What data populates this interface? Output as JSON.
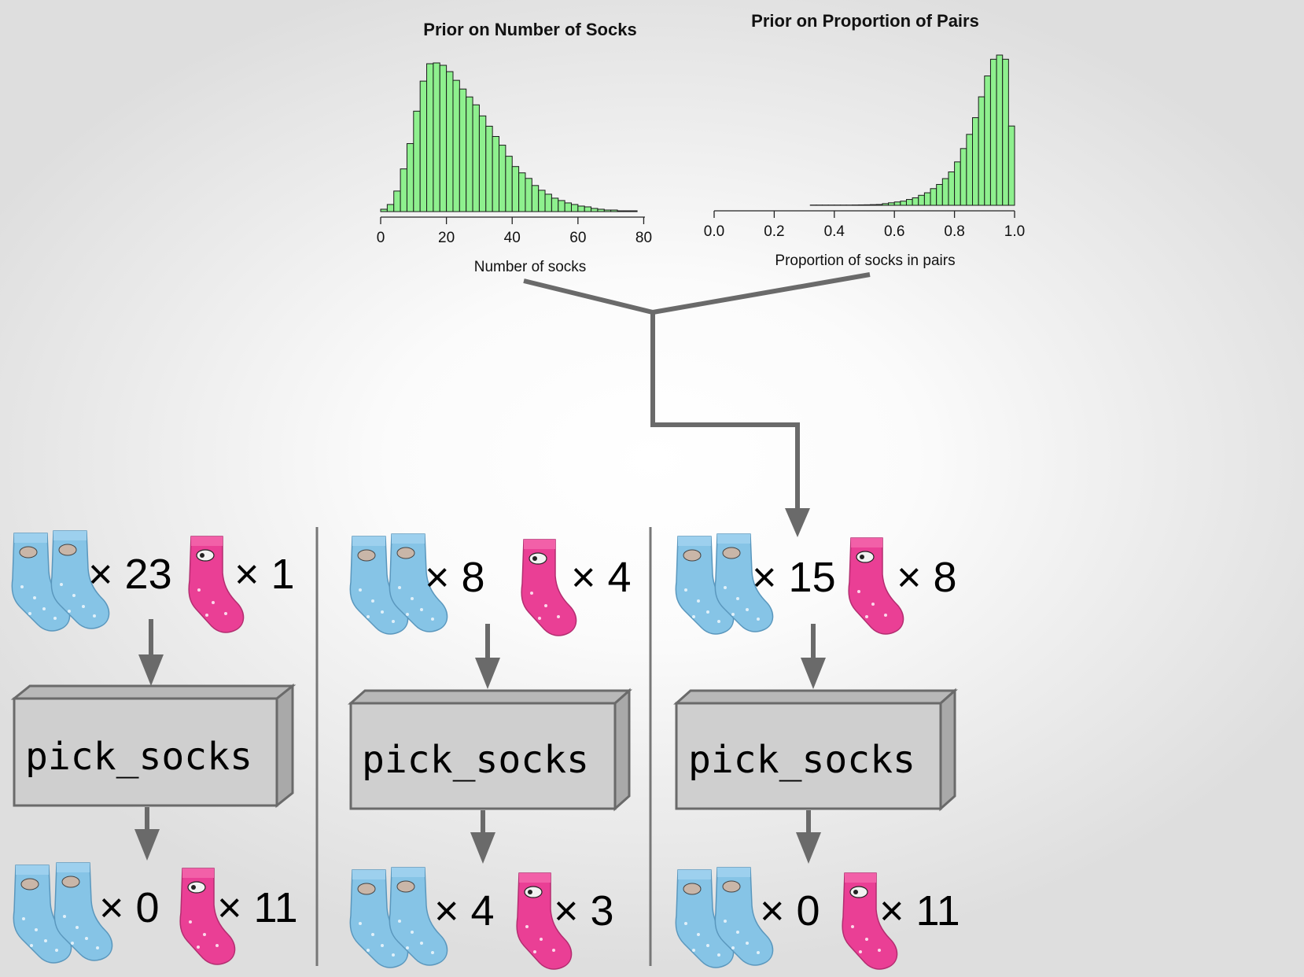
{
  "chart_data": [
    {
      "type": "bar",
      "title": "Prior on Number of Socks",
      "xlabel": "Number of socks",
      "ylabel": "",
      "xlim": [
        0,
        94
      ],
      "xticks": [
        0,
        20,
        40,
        60,
        80
      ],
      "bin_width": 2,
      "bin_start": 0,
      "values": [
        3,
        9,
        26,
        54,
        86,
        127,
        165,
        187,
        188,
        185,
        177,
        166,
        155,
        145,
        135,
        121,
        108,
        95,
        84,
        70,
        57,
        49,
        42,
        33,
        27,
        22,
        17,
        14,
        11,
        9,
        7,
        6,
        4,
        3,
        2,
        2,
        1,
        1,
        1
      ]
    },
    {
      "type": "bar",
      "title": "Prior on Proportion of Pairs",
      "xlabel": "Proportion of socks in pairs",
      "ylabel": "",
      "xlim": [
        0.0,
        1.0
      ],
      "xticks": [
        "0.0",
        "0.2",
        "0.4",
        "0.6",
        "0.8",
        "1.0"
      ],
      "bin_width": 0.02,
      "bin_start": 0.32,
      "values": [
        0.3,
        0.3,
        0.3,
        0.3,
        0.3,
        0.3,
        0.3,
        0.4,
        0.5,
        0.6,
        0.8,
        1,
        2,
        3,
        4,
        5,
        7,
        9,
        12,
        15,
        20,
        25,
        32,
        40,
        52,
        68,
        85,
        105,
        130,
        155,
        175,
        180,
        175,
        95
      ]
    }
  ],
  "columns": [
    {
      "input_pairs": "× 23",
      "input_singles": "× 1",
      "box_label": "pick_socks",
      "output_pairs": "× 0",
      "output_singles": "× 11"
    },
    {
      "input_pairs": "× 8",
      "input_singles": "× 4",
      "box_label": "pick_socks",
      "output_pairs": "× 4",
      "output_singles": "× 3"
    },
    {
      "input_pairs": "× 15",
      "input_singles": "× 8",
      "box_label": "pick_socks",
      "output_pairs": "× 0",
      "output_singles": "× 11"
    }
  ],
  "colors": {
    "bar_fill": "#8ef08e",
    "blue_sock": "#86c4e6",
    "pink_sock": "#ea3f95",
    "box_fill": "#cfcfcf",
    "flow_arrow": "#6a6a6a"
  }
}
